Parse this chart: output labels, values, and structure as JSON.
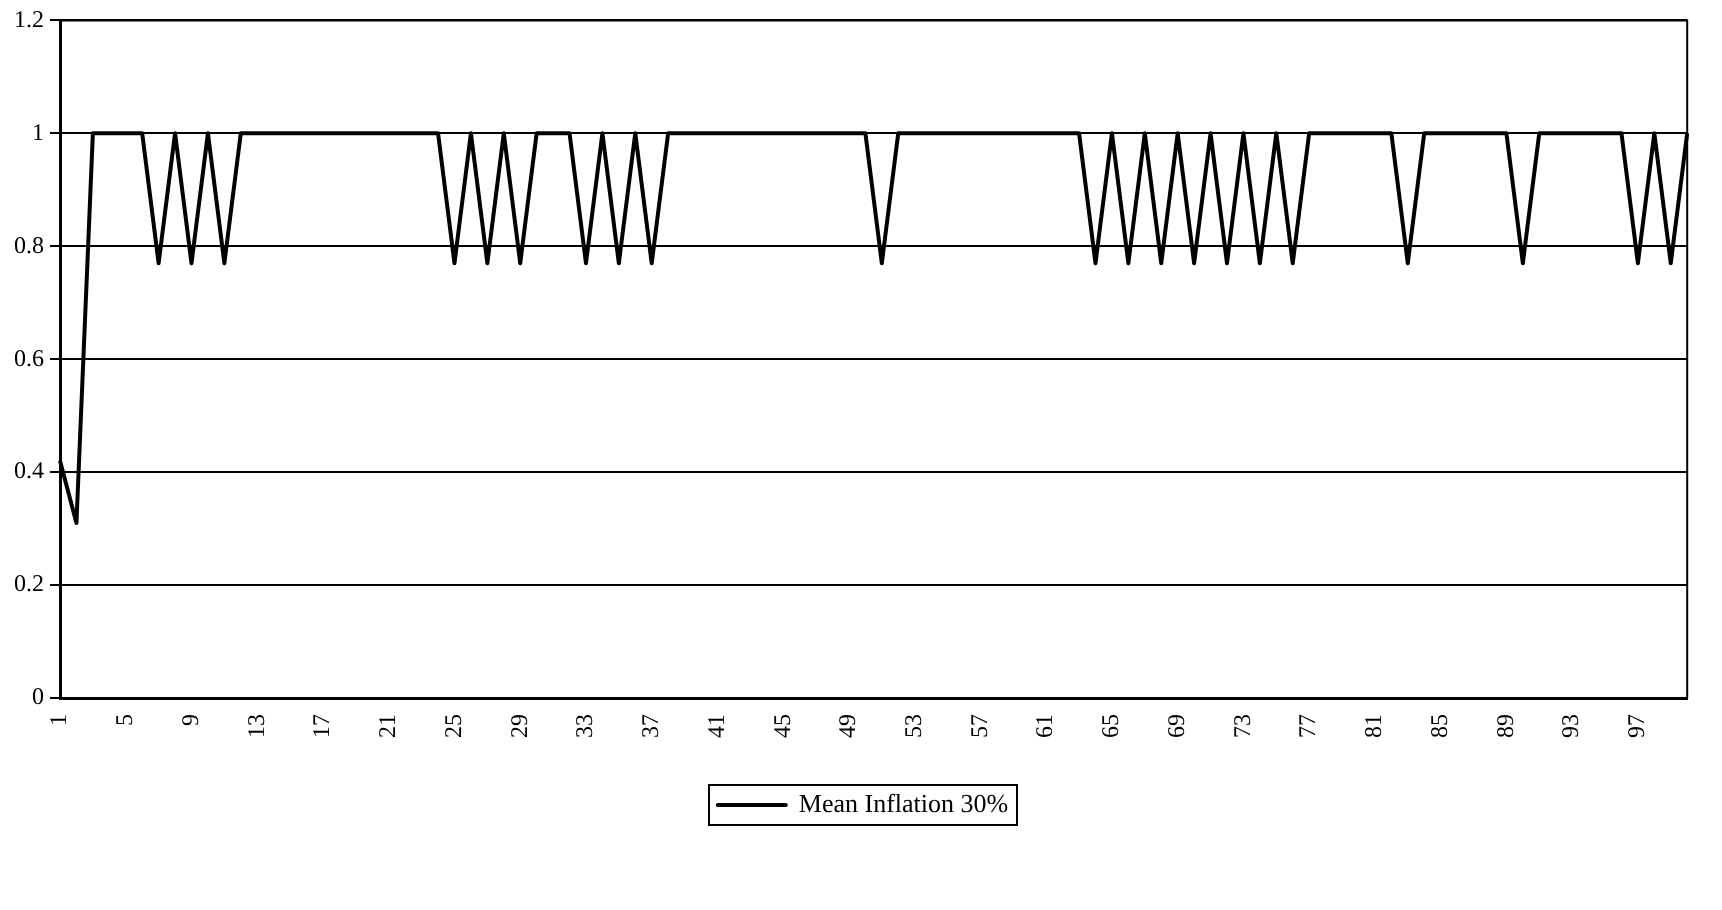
{
  "chart_data": {
    "type": "line",
    "categories": [
      "1",
      null,
      null,
      null,
      "5",
      null,
      null,
      null,
      "9",
      null,
      null,
      null,
      "13",
      null,
      null,
      null,
      "17",
      null,
      null,
      null,
      "21",
      null,
      null,
      null,
      "25",
      null,
      null,
      null,
      "29",
      null,
      null,
      null,
      "33",
      null,
      null,
      null,
      "37",
      null,
      null,
      null,
      "41",
      null,
      null,
      null,
      "45",
      null,
      null,
      null,
      "49",
      null,
      null,
      null,
      "53",
      null,
      null,
      null,
      "57",
      null,
      null,
      null,
      "61",
      null,
      null,
      null,
      "65",
      null,
      null,
      null,
      "69",
      null,
      null,
      null,
      "73",
      null,
      null,
      null,
      "77",
      null,
      null,
      null,
      "81",
      null,
      null,
      null,
      "85",
      null,
      null,
      null,
      "89",
      null,
      null,
      null,
      "93",
      null,
      null,
      null,
      "97",
      null,
      null,
      null
    ],
    "series": [
      {
        "name": "Mean Inflation 30%",
        "color": "#000000",
        "values": [
          0.42,
          0.31,
          1,
          1,
          1,
          1,
          0.77,
          1,
          0.77,
          1,
          0.77,
          1,
          1,
          1,
          1,
          1,
          1,
          1,
          1,
          1,
          1,
          1,
          1,
          1,
          0.77,
          1,
          0.77,
          1,
          0.77,
          1,
          1,
          1,
          0.77,
          1,
          0.77,
          1,
          0.77,
          1,
          1,
          1,
          1,
          1,
          1,
          1,
          1,
          1,
          1,
          1,
          1,
          1,
          0.77,
          1,
          1,
          1,
          1,
          1,
          1,
          1,
          1,
          1,
          1,
          1,
          1,
          0.77,
          1,
          0.77,
          1,
          0.77,
          1,
          0.77,
          1,
          0.77,
          1,
          0.77,
          1,
          0.77,
          1,
          1,
          1,
          1,
          1,
          1,
          0.77,
          1,
          1,
          1,
          1,
          1,
          1,
          0.77,
          1,
          1,
          1,
          1,
          1,
          1,
          0.77,
          1,
          0.77,
          1
        ]
      }
    ],
    "ylim": [
      0,
      1.2
    ],
    "yticks": [
      0,
      0.2,
      0.4,
      0.6,
      0.8,
      1,
      1.2
    ],
    "grid": "y",
    "legend": "bottom",
    "marker": "none",
    "line_style": "solid"
  }
}
